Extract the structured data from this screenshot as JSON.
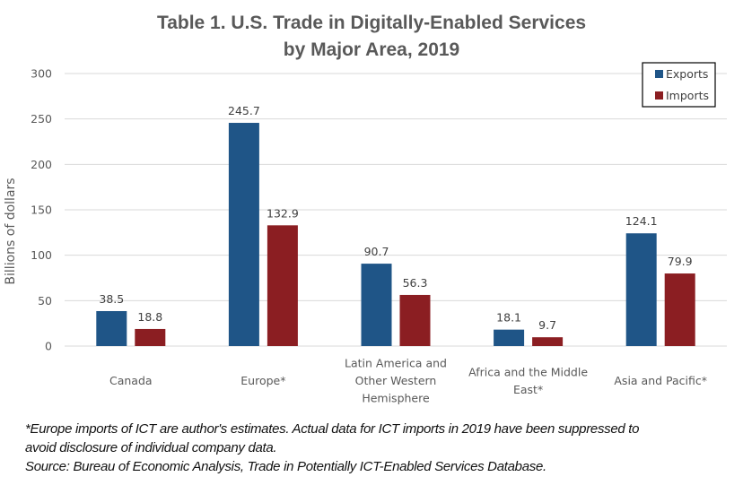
{
  "chart_data": {
    "type": "bar",
    "title": [
      "Table 1. U.S. Trade in Digitally-Enabled Services",
      "by Major Area, 2019"
    ],
    "xlabel": "",
    "ylabel": "Billions of dollars",
    "ylim": [
      0,
      300
    ],
    "yticks": [
      0,
      50,
      100,
      150,
      200,
      250,
      300
    ],
    "grid": true,
    "legend_position": "top-right",
    "categories": [
      [
        "Canada"
      ],
      [
        "Europe*"
      ],
      [
        "Latin America and",
        "Other Western",
        "Hemisphere"
      ],
      [
        "Africa and the Middle",
        "East*"
      ],
      [
        "Asia and Pacific*"
      ]
    ],
    "series": [
      {
        "name": "Exports",
        "color": "#1F5587",
        "values": [
          38.5,
          245.7,
          90.7,
          18.1,
          124.1
        ]
      },
      {
        "name": "Imports",
        "color": "#8B1E22",
        "values": [
          18.8,
          132.9,
          56.3,
          9.7,
          79.9
        ]
      }
    ]
  },
  "notes": {
    "line1": "*Europe imports of ICT are author's estimates. Actual data for ICT imports in 2019 have been suppressed to",
    "line2": "avoid disclosure of individual company data.",
    "source": "Source: Bureau of Economic Analysis, Trade in Potentially ICT-Enabled Services Database."
  }
}
